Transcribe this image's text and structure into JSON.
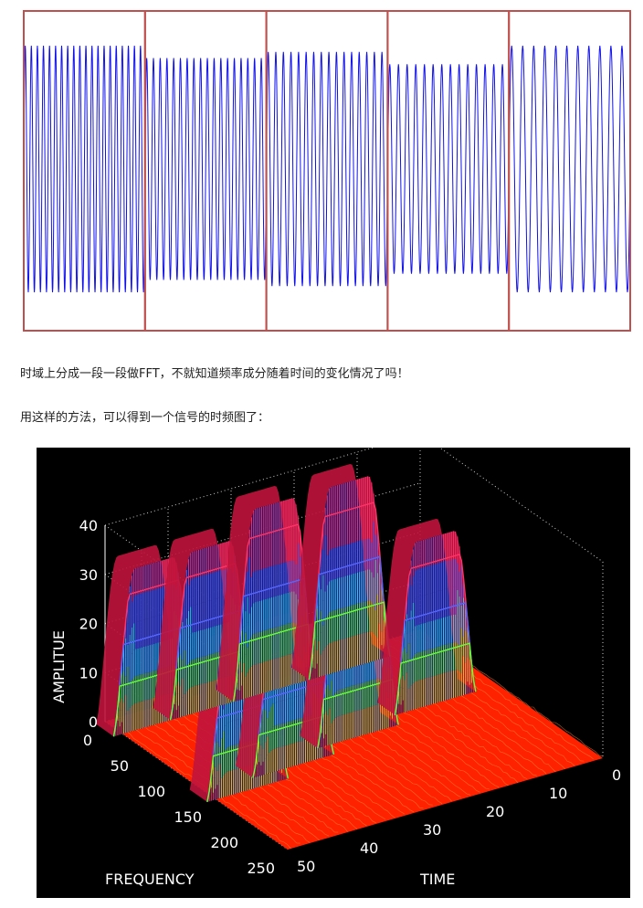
{
  "paragraphs": {
    "p1": "时域上分成一段一段做FFT，不就知道频率成分随着时间的变化情况了吗！",
    "p2": "用这样的方法，可以得到一个信号的时频图了："
  },
  "colors": {
    "signal": "#1111ee",
    "window_box": "#c0504d",
    "plot_bg": "#000000",
    "floor": "#ff2200"
  },
  "chart_data": [
    {
      "type": "line",
      "description_free": true,
      "segments": [
        {
          "amplitude": 1.0,
          "cycles": 20
        },
        {
          "amplitude": 0.9,
          "cycles": 18
        },
        {
          "amplitude": 0.95,
          "cycles": 16
        },
        {
          "amplitude": 0.85,
          "cycles": 14
        },
        {
          "amplitude": 1.0,
          "cycles": 11
        }
      ],
      "windows": 5
    },
    {
      "type": "surface3d",
      "zlabel": "AMPLITUE",
      "xlabel": "FREQUENCY",
      "ylabel": "TIME",
      "z_ticks": [
        "40",
        "30",
        "20",
        "10",
        "0"
      ],
      "freq_ticks": [
        "0",
        "50",
        "100",
        "150",
        "200",
        "250"
      ],
      "time_ticks": [
        "0",
        "10",
        "20",
        "30",
        "40",
        "50"
      ],
      "zlim": [
        0,
        40
      ],
      "freq_lim": [
        0,
        250
      ],
      "time_lim": [
        0,
        50
      ],
      "peaks": [
        {
          "time": 45,
          "freq": 12,
          "amp": 33
        },
        {
          "time": 36,
          "freq": 12,
          "amp": 33
        },
        {
          "time": 26,
          "freq": 12,
          "amp": 38
        },
        {
          "time": 14,
          "freq": 12,
          "amp": 38
        },
        {
          "time": 45,
          "freq": 140,
          "amp": 30
        },
        {
          "time": 36,
          "freq": 125,
          "amp": 28
        },
        {
          "time": 24,
          "freq": 110,
          "amp": 32
        },
        {
          "time": 10,
          "freq": 95,
          "amp": 34
        }
      ]
    }
  ]
}
